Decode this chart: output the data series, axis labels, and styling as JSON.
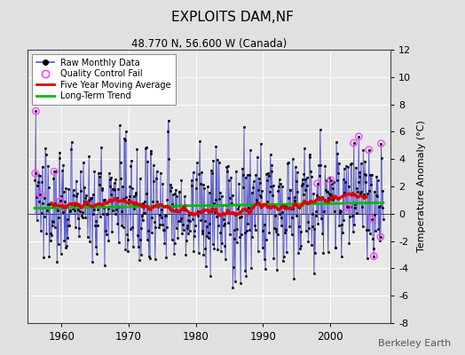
{
  "title": "EXPLOITS DAM,NF",
  "subtitle": "48.770 N, 56.600 W (Canada)",
  "ylabel": "Temperature Anomaly (°C)",
  "ylim": [
    -8,
    12
  ],
  "xlim": [
    1955,
    2009
  ],
  "yticks": [
    -8,
    -6,
    -4,
    -2,
    0,
    2,
    4,
    6,
    8,
    10,
    12
  ],
  "xticks": [
    1960,
    1970,
    1980,
    1990,
    2000
  ],
  "bg_color": "#e0e0e0",
  "plot_bg_color": "#e8e8e8",
  "raw_line_color": "#5555cc",
  "raw_marker_color": "#000000",
  "qc_fail_color": "#ff44ff",
  "moving_avg_color": "#dd0000",
  "trend_color": "#00bb00",
  "credit": "Berkeley Earth",
  "seed": 137,
  "n_months": 624,
  "start_year": 1956.0
}
